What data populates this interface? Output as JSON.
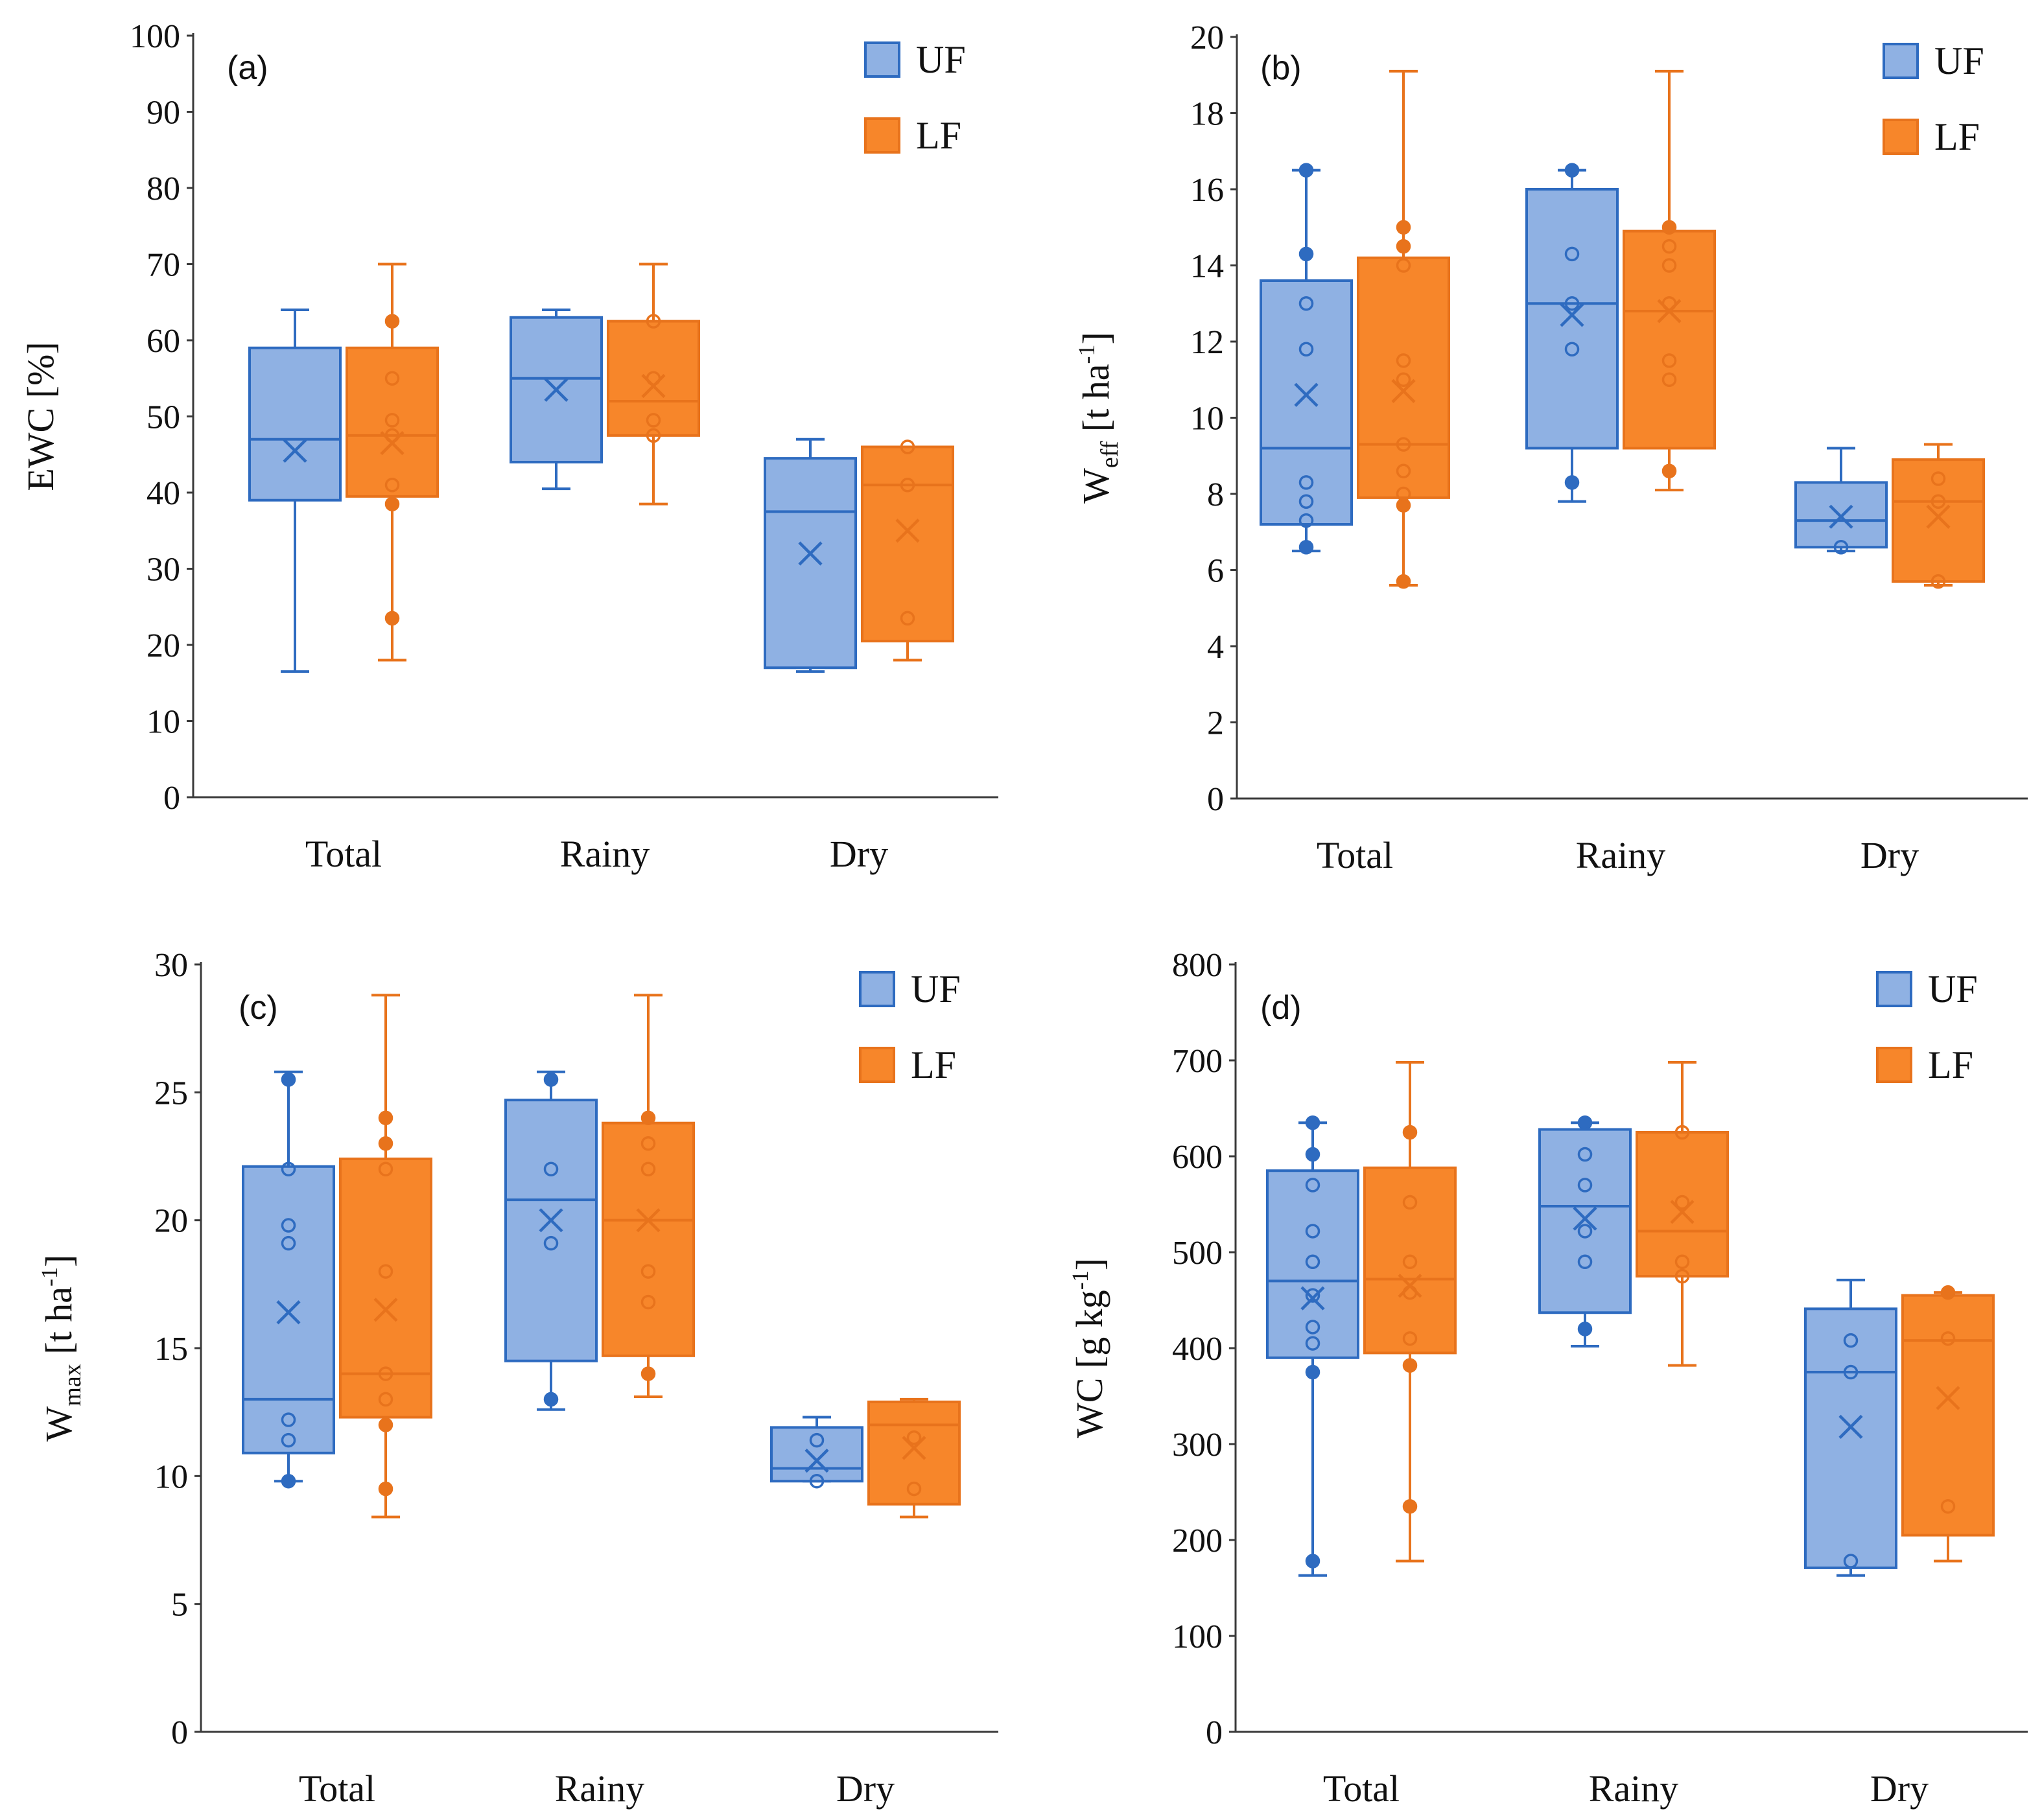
{
  "colors": {
    "UF": {
      "fill": "#8fb1e3",
      "stroke": "#2e6bc0"
    },
    "LF": {
      "fill": "#f7862a",
      "stroke": "#e8731c"
    },
    "axis": "#3a3a3a"
  },
  "chart_data": [
    {
      "panel": "(a)",
      "type": "box",
      "ylabel": {
        "main": "EWC [%]",
        "sub": "",
        "rest": "",
        "sup": "",
        "end": ""
      },
      "ylim": [
        0,
        100
      ],
      "yticks": [
        0,
        10,
        20,
        30,
        40,
        50,
        60,
        70,
        80,
        90,
        100
      ],
      "categories": [
        "Total",
        "Rainy",
        "Dry"
      ],
      "legend": [
        "UF",
        "LF"
      ],
      "series": [
        {
          "name": "UF",
          "boxes": [
            {
              "min": 16.5,
              "q1": 39,
              "median": 47,
              "q3": 59,
              "max": 64,
              "mean": 45.5,
              "points": []
            },
            {
              "min": 40.5,
              "q1": 44,
              "median": 55,
              "q3": 63,
              "max": 64,
              "mean": 53.5,
              "points": []
            },
            {
              "min": 16.5,
              "q1": 17,
              "median": 37.5,
              "q3": 44.5,
              "max": 47,
              "mean": 32,
              "points": []
            }
          ]
        },
        {
          "name": "LF",
          "boxes": [
            {
              "min": 18,
              "q1": 39.5,
              "median": 47.5,
              "q3": 59,
              "max": 70,
              "mean": 46.5,
              "points": [
                23.5,
                38.5,
                41,
                47.5,
                49.5,
                55,
                62.5
              ]
            },
            {
              "min": 38.5,
              "q1": 47.5,
              "median": 52,
              "q3": 62.5,
              "max": 70,
              "mean": 54,
              "points": [
                47.5,
                49.5,
                55,
                62.5
              ]
            },
            {
              "min": 18,
              "q1": 20.5,
              "median": 41,
              "q3": 46,
              "max": 46,
              "mean": 35,
              "points": [
                23.5,
                41,
                46
              ]
            }
          ]
        }
      ]
    },
    {
      "panel": "(b)",
      "type": "box",
      "ylabel": {
        "main": "W",
        "sub": "eff",
        "rest": " [t ha",
        "sup": "-1",
        "end": "]"
      },
      "ylim": [
        0,
        20
      ],
      "yticks": [
        0,
        2,
        4,
        6,
        8,
        10,
        12,
        14,
        16,
        18,
        20
      ],
      "categories": [
        "Total",
        "Rainy",
        "Dry"
      ],
      "legend": [
        "UF",
        "LF"
      ],
      "series": [
        {
          "name": "UF",
          "boxes": [
            {
              "min": 6.5,
              "q1": 7.2,
              "median": 9.2,
              "q3": 13.6,
              "max": 16.5,
              "mean": 10.6,
              "points": [
                6.6,
                7.3,
                7.8,
                8.3,
                11.8,
                13,
                14.3,
                16.5
              ]
            },
            {
              "min": 7.8,
              "q1": 9.2,
              "median": 13,
              "q3": 16,
              "max": 16.5,
              "mean": 12.7,
              "points": [
                8.3,
                11.8,
                13,
                14.3,
                16.5
              ]
            },
            {
              "min": 6.5,
              "q1": 6.6,
              "median": 7.3,
              "q3": 8.3,
              "max": 9.2,
              "mean": 7.4,
              "points": [
                6.6
              ]
            }
          ]
        },
        {
          "name": "LF",
          "boxes": [
            {
              "min": 5.6,
              "q1": 7.9,
              "median": 9.3,
              "q3": 14.2,
              "max": 19.1,
              "mean": 10.7,
              "points": [
                5.7,
                7.7,
                8,
                8.6,
                9.3,
                11,
                11.5,
                14,
                14.5,
                15
              ]
            },
            {
              "min": 8.1,
              "q1": 9.2,
              "median": 12.8,
              "q3": 14.9,
              "max": 19.1,
              "mean": 12.8,
              "points": [
                8.6,
                11,
                11.5,
                13,
                14,
                14.5,
                15
              ]
            },
            {
              "min": 5.6,
              "q1": 5.7,
              "median": 7.8,
              "q3": 8.9,
              "max": 9.3,
              "mean": 7.4,
              "points": [
                5.7,
                7.8,
                8.4
              ]
            }
          ]
        }
      ]
    },
    {
      "panel": "(c)",
      "type": "box",
      "ylabel": {
        "main": "W",
        "sub": "max",
        "rest": " [t ha",
        "sup": "-1",
        "end": "]"
      },
      "ylim": [
        0,
        30
      ],
      "yticks": [
        0,
        5,
        10,
        15,
        20,
        25,
        30
      ],
      "categories": [
        "Total",
        "Rainy",
        "Dry"
      ],
      "legend": [
        "UF",
        "LF"
      ],
      "series": [
        {
          "name": "UF",
          "boxes": [
            {
              "min": 9.8,
              "q1": 10.9,
              "median": 13,
              "q3": 22.1,
              "max": 25.8,
              "mean": 16.4,
              "points": [
                9.8,
                11.4,
                12.2,
                19.1,
                19.8,
                22,
                25.5
              ]
            },
            {
              "min": 12.6,
              "q1": 14.5,
              "median": 20.8,
              "q3": 24.7,
              "max": 25.8,
              "mean": 20,
              "points": [
                13,
                19.1,
                22,
                25.5
              ]
            },
            {
              "min": 9.8,
              "q1": 9.8,
              "median": 10.3,
              "q3": 11.9,
              "max": 12.3,
              "mean": 10.6,
              "points": [
                9.8,
                11.4
              ]
            }
          ]
        },
        {
          "name": "LF",
          "boxes": [
            {
              "min": 8.4,
              "q1": 12.3,
              "median": 14,
              "q3": 22.4,
              "max": 28.8,
              "mean": 16.5,
              "points": [
                9.5,
                12,
                13,
                14,
                18,
                22,
                23,
                24
              ]
            },
            {
              "min": 13.1,
              "q1": 14.7,
              "median": 20,
              "q3": 23.8,
              "max": 28.8,
              "mean": 20,
              "points": [
                14,
                16.8,
                18,
                22,
                23,
                24
              ]
            },
            {
              "min": 8.4,
              "q1": 8.9,
              "median": 12,
              "q3": 12.9,
              "max": 13,
              "mean": 11.1,
              "points": [
                9.5,
                11.5
              ]
            }
          ]
        }
      ]
    },
    {
      "panel": "(d)",
      "type": "box",
      "ylabel": {
        "main": "WC [g kg",
        "sub": "",
        "rest": "",
        "sup": "-1",
        "end": "]"
      },
      "ylim": [
        0,
        800
      ],
      "yticks": [
        0,
        100,
        200,
        300,
        400,
        500,
        600,
        700,
        800
      ],
      "categories": [
        "Total",
        "Rainy",
        "Dry"
      ],
      "legend": [
        "UF",
        "LF"
      ],
      "series": [
        {
          "name": "UF",
          "boxes": [
            {
              "min": 163,
              "q1": 390,
              "median": 470,
              "q3": 585,
              "max": 635,
              "mean": 452,
              "points": [
                178,
                375,
                405,
                422,
                455,
                490,
                522,
                570,
                602,
                635
              ]
            },
            {
              "min": 402,
              "q1": 437,
              "median": 548,
              "q3": 628,
              "max": 635,
              "mean": 535,
              "points": [
                420,
                490,
                522,
                570,
                602,
                635
              ]
            },
            {
              "min": 163,
              "q1": 171,
              "median": 375,
              "q3": 441,
              "max": 471,
              "mean": 318,
              "points": [
                178,
                375,
                408
              ]
            }
          ]
        },
        {
          "name": "LF",
          "boxes": [
            {
              "min": 178,
              "q1": 395,
              "median": 472,
              "q3": 588,
              "max": 698,
              "mean": 465,
              "points": [
                235,
                382,
                410,
                458,
                490,
                552,
                625
              ]
            },
            {
              "min": 382,
              "q1": 475,
              "median": 522,
              "q3": 625,
              "max": 698,
              "mean": 542,
              "points": [
                475,
                490,
                552,
                625
              ]
            },
            {
              "min": 178,
              "q1": 205,
              "median": 408,
              "q3": 455,
              "max": 458,
              "mean": 348,
              "points": [
                235,
                410,
                458
              ]
            }
          ]
        }
      ]
    }
  ]
}
